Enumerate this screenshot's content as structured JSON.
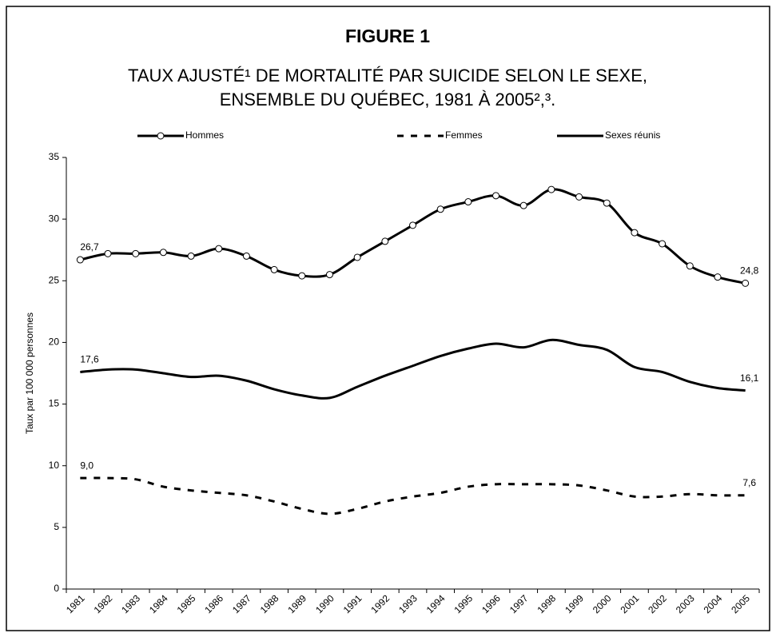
{
  "chart_data": {
    "type": "line",
    "title": "FIGURE 1",
    "subtitle": [
      "TAUX AJUSTÉ¹ DE MORTALITÉ PAR SUICIDE SELON LE SEXE,",
      "ENSEMBLE DU QUÉBEC, 1981 À 2005²,³."
    ],
    "y_label": "Taux par 100 000 personnes",
    "categories": [
      "1981",
      "1982",
      "1983",
      "1984",
      "1985",
      "1986",
      "1987",
      "1988",
      "1989",
      "1990",
      "1991",
      "1992",
      "1993",
      "1994",
      "1995",
      "1996",
      "1997",
      "1998",
      "1999",
      "2000",
      "2001",
      "2002",
      "2003",
      "2004",
      "2005"
    ],
    "series": [
      {
        "name": "Hommes",
        "color": "#000000",
        "style": "markers",
        "values": [
          26.7,
          27.2,
          27.2,
          27.3,
          27.0,
          27.6,
          27.0,
          25.9,
          25.4,
          25.5,
          26.9,
          28.2,
          29.5,
          30.8,
          31.4,
          31.9,
          31.1,
          32.4,
          31.8,
          31.3,
          28.9,
          28.0,
          26.2,
          25.3,
          24.8
        ],
        "value_labels": [
          "26,7",
          null,
          null,
          null,
          null,
          null,
          null,
          null,
          null,
          null,
          null,
          null,
          null,
          null,
          null,
          null,
          null,
          null,
          null,
          null,
          null,
          null,
          null,
          null,
          "24,8"
        ]
      },
      {
        "name": "Femmes",
        "color": "#000000",
        "style": "dashed",
        "values": [
          9.0,
          9.0,
          8.9,
          8.3,
          8.0,
          7.8,
          7.6,
          7.1,
          6.5,
          6.1,
          6.5,
          7.1,
          7.5,
          7.8,
          8.3,
          8.5,
          8.5,
          8.5,
          8.4,
          8.0,
          7.5,
          7.5,
          7.7,
          7.6,
          7.6
        ],
        "value_labels": [
          "9,0",
          null,
          null,
          null,
          null,
          null,
          null,
          null,
          null,
          null,
          null,
          null,
          null,
          null,
          null,
          null,
          null,
          null,
          null,
          null,
          null,
          null,
          null,
          null,
          "7,6"
        ]
      },
      {
        "name": "Sexes réunis",
        "color": "#000000",
        "style": "solid",
        "values": [
          17.6,
          17.8,
          17.8,
          17.5,
          17.2,
          17.3,
          16.9,
          16.2,
          15.7,
          15.5,
          16.4,
          17.3,
          18.1,
          18.9,
          19.5,
          19.9,
          19.6,
          20.2,
          19.8,
          19.4,
          18.0,
          17.6,
          16.8,
          16.3,
          16.1
        ],
        "value_labels": [
          "17,6",
          null,
          null,
          null,
          null,
          null,
          null,
          null,
          null,
          null,
          null,
          null,
          null,
          null,
          null,
          null,
          null,
          null,
          null,
          null,
          null,
          null,
          null,
          null,
          "16,1"
        ]
      }
    ],
    "ylim": [
      0,
      35
    ],
    "yticks": [
      0,
      5,
      10,
      15,
      20,
      25,
      30,
      35
    ],
    "grid": false
  }
}
